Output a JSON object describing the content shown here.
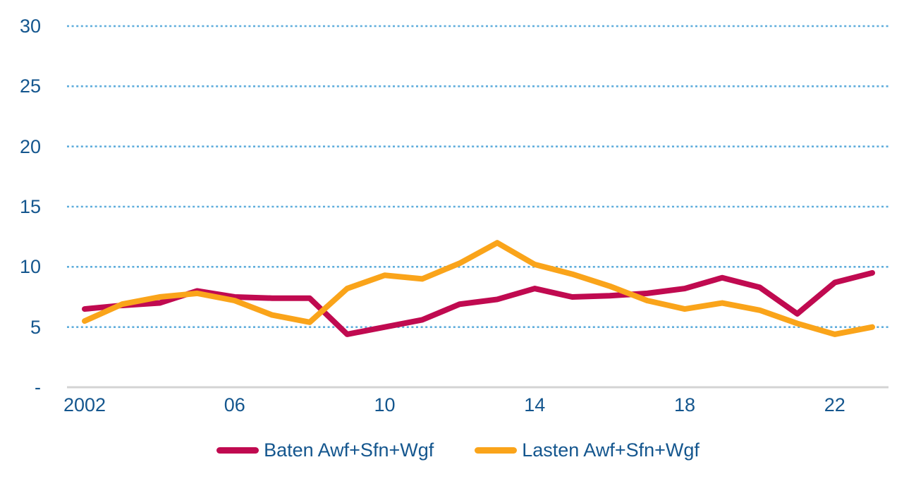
{
  "chart_data": {
    "type": "line",
    "x": [
      2002,
      2003,
      2004,
      2005,
      2006,
      2007,
      2008,
      2009,
      2010,
      2011,
      2012,
      2013,
      2014,
      2015,
      2016,
      2017,
      2018,
      2019,
      2020,
      2021,
      2022,
      2023
    ],
    "series": [
      {
        "name": "Baten Awf+Sfn+Wgf",
        "color": "#C00A50",
        "values": [
          6.5,
          6.8,
          7.0,
          8.0,
          7.5,
          7.4,
          7.4,
          4.4,
          5.0,
          5.6,
          6.9,
          7.3,
          8.2,
          7.5,
          7.6,
          7.8,
          8.2,
          9.1,
          8.3,
          6.1,
          8.7,
          9.5
        ]
      },
      {
        "name": "Lasten Awf+Sfn+Wgf",
        "color": "#FAA41A",
        "values": [
          5.5,
          6.9,
          7.5,
          7.8,
          7.2,
          6.0,
          5.4,
          8.2,
          9.3,
          9.0,
          10.3,
          12.0,
          10.2,
          9.4,
          8.4,
          7.2,
          6.5,
          7.0,
          6.4,
          5.3,
          4.4,
          5.0
        ]
      }
    ],
    "title": "",
    "xlabel": "",
    "ylabel": "",
    "ylim": [
      0,
      30
    ],
    "y_ticks": [
      {
        "value": 30,
        "label": "30"
      },
      {
        "value": 25,
        "label": "25"
      },
      {
        "value": 20,
        "label": "20"
      },
      {
        "value": 15,
        "label": "15"
      },
      {
        "value": 10,
        "label": "10"
      },
      {
        "value": 5,
        "label": "5"
      },
      {
        "value": 0,
        "label": "-"
      }
    ],
    "x_ticks": [
      {
        "value": 2002,
        "label": "2002"
      },
      {
        "value": 2006,
        "label": "06"
      },
      {
        "value": 2010,
        "label": "10"
      },
      {
        "value": 2014,
        "label": "14"
      },
      {
        "value": 2018,
        "label": "18"
      },
      {
        "value": 2022,
        "label": "22"
      }
    ],
    "grid": "horizontal-dotted",
    "legend_position": "bottom-center",
    "colors": {
      "axis_text": "#14568E",
      "gridline": "#5FADDC",
      "baseline": "#D4D4D4",
      "background": "#FFFFFF"
    }
  }
}
